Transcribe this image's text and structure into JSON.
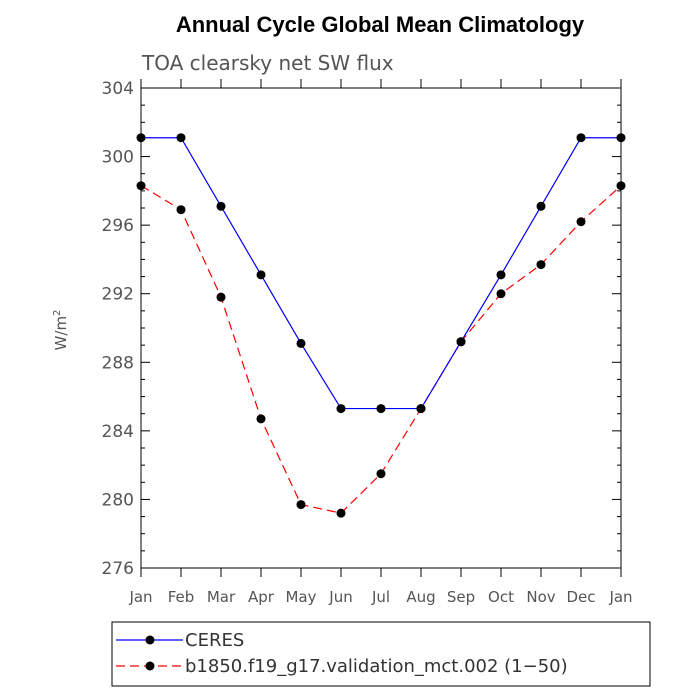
{
  "chart_data": {
    "type": "line",
    "title": "Annual Cycle Global Mean Climatology",
    "subtitle": "TOA clearsky net SW flux",
    "ylabel": "W/m",
    "ylabel_superscript": "2",
    "categories": [
      "Jan",
      "Feb",
      "Mar",
      "Apr",
      "May",
      "Jun",
      "Jul",
      "Aug",
      "Sep",
      "Oct",
      "Nov",
      "Dec",
      "Jan"
    ],
    "ylim": [
      276,
      304
    ],
    "yticks": [
      276,
      280,
      284,
      288,
      292,
      296,
      300,
      304
    ],
    "series": [
      {
        "name": "CERES",
        "color": "#0000ff",
        "dash": "solid",
        "values": [
          301.1,
          301.1,
          297.1,
          293.1,
          289.1,
          285.3,
          285.3,
          285.3,
          289.2,
          293.1,
          297.1,
          301.1,
          301.1
        ]
      },
      {
        "name": "b1850.f19_g17.validation_mct.002 (1−50)",
        "color": "#ff0000",
        "dash": "dashed",
        "values": [
          298.3,
          296.9,
          291.8,
          284.7,
          279.7,
          279.2,
          281.5,
          285.3,
          289.2,
          292.0,
          293.7,
          296.2,
          298.3
        ]
      }
    ],
    "legend_placement": "bottom"
  }
}
